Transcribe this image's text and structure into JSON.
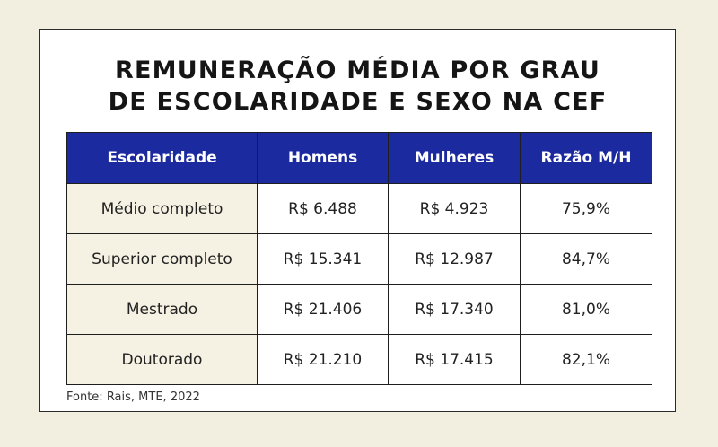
{
  "colors": {
    "background": "#f2eee0",
    "header_bg": "#1c2aa0",
    "first_col_bg": "#f5f1e3"
  },
  "chart_data": {
    "type": "table",
    "title_lines": [
      "REMUNERAÇÃO MÉDIA POR GRAU",
      "DE ESCOLARIDADE E SEXO NA CEF"
    ],
    "columns": [
      "Escolaridade",
      "Homens",
      "Mulheres",
      "Razão M/H"
    ],
    "rows": [
      [
        "Médio completo",
        "R$ 6.488",
        "R$ 4.923",
        "75,9%"
      ],
      [
        "Superior completo",
        "R$ 15.341",
        "R$ 12.987",
        "84,7%"
      ],
      [
        "Mestrado",
        "R$ 21.406",
        "R$ 17.340",
        "81,0%"
      ],
      [
        "Doutorado",
        "R$ 21.210",
        "R$ 17.415",
        "82,1%"
      ]
    ],
    "source": "Fonte: Rais, MTE, 2022"
  }
}
